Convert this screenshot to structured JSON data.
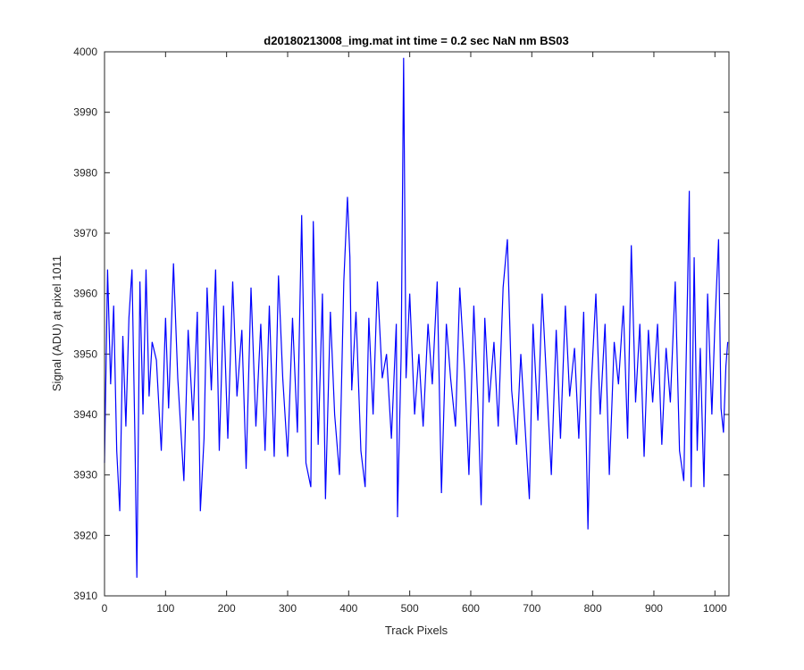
{
  "chart_data": {
    "type": "line",
    "title": "d20180213008_img.mat int time = 0.2 sec  NaN nm BS03",
    "xlabel": "Track Pixels",
    "ylabel": "Signal (ADU) at pixel 1011",
    "xlim": [
      0,
      1023
    ],
    "ylim": [
      3910,
      4000
    ],
    "xticks": [
      0,
      100,
      200,
      300,
      400,
      500,
      600,
      700,
      800,
      900,
      1000
    ],
    "yticks": [
      3910,
      3920,
      3930,
      3940,
      3950,
      3960,
      3970,
      3980,
      3990,
      4000
    ],
    "grid": false,
    "legend": "none",
    "color": "#0000ff",
    "series": [
      {
        "points": [
          [
            0,
            3932
          ],
          [
            5,
            3964
          ],
          [
            10,
            3945
          ],
          [
            15,
            3958
          ],
          [
            20,
            3934
          ],
          [
            25,
            3924
          ],
          [
            30,
            3953
          ],
          [
            35,
            3938
          ],
          [
            40,
            3956
          ],
          [
            45,
            3964
          ],
          [
            50,
            3935
          ],
          [
            53,
            3913
          ],
          [
            58,
            3962
          ],
          [
            63,
            3940
          ],
          [
            68,
            3964
          ],
          [
            73,
            3943
          ],
          [
            78,
            3952
          ],
          [
            85,
            3949
          ],
          [
            93,
            3934
          ],
          [
            100,
            3956
          ],
          [
            105,
            3941
          ],
          [
            113,
            3965
          ],
          [
            120,
            3946
          ],
          [
            130,
            3929
          ],
          [
            137,
            3954
          ],
          [
            145,
            3939
          ],
          [
            152,
            3957
          ],
          [
            157,
            3924
          ],
          [
            163,
            3936
          ],
          [
            168,
            3961
          ],
          [
            175,
            3944
          ],
          [
            182,
            3964
          ],
          [
            188,
            3934
          ],
          [
            195,
            3958
          ],
          [
            202,
            3936
          ],
          [
            210,
            3962
          ],
          [
            217,
            3943
          ],
          [
            225,
            3954
          ],
          [
            232,
            3931
          ],
          [
            240,
            3961
          ],
          [
            248,
            3938
          ],
          [
            256,
            3955
          ],
          [
            263,
            3934
          ],
          [
            270,
            3958
          ],
          [
            278,
            3933
          ],
          [
            285,
            3963
          ],
          [
            292,
            3946
          ],
          [
            300,
            3933
          ],
          [
            308,
            3956
          ],
          [
            316,
            3937
          ],
          [
            323,
            3973
          ],
          [
            330,
            3932
          ],
          [
            338,
            3928
          ],
          [
            342,
            3972
          ],
          [
            350,
            3935
          ],
          [
            357,
            3960
          ],
          [
            362,
            3926
          ],
          [
            370,
            3957
          ],
          [
            377,
            3940
          ],
          [
            385,
            3930
          ],
          [
            392,
            3962
          ],
          [
            398,
            3976
          ],
          [
            402,
            3966
          ],
          [
            405,
            3944
          ],
          [
            412,
            3957
          ],
          [
            420,
            3934
          ],
          [
            427,
            3928
          ],
          [
            433,
            3956
          ],
          [
            440,
            3940
          ],
          [
            447,
            3962
          ],
          [
            455,
            3946
          ],
          [
            462,
            3950
          ],
          [
            470,
            3936
          ],
          [
            478,
            3955
          ],
          [
            480,
            3923
          ],
          [
            486,
            3950
          ],
          [
            490,
            3999
          ],
          [
            494,
            3946
          ],
          [
            500,
            3960
          ],
          [
            508,
            3940
          ],
          [
            515,
            3950
          ],
          [
            522,
            3938
          ],
          [
            530,
            3955
          ],
          [
            537,
            3945
          ],
          [
            545,
            3962
          ],
          [
            552,
            3927
          ],
          [
            560,
            3955
          ],
          [
            567,
            3946
          ],
          [
            575,
            3938
          ],
          [
            582,
            3961
          ],
          [
            590,
            3947
          ],
          [
            597,
            3930
          ],
          [
            605,
            3958
          ],
          [
            612,
            3941
          ],
          [
            617,
            3925
          ],
          [
            623,
            3956
          ],
          [
            630,
            3942
          ],
          [
            638,
            3952
          ],
          [
            645,
            3938
          ],
          [
            653,
            3961
          ],
          [
            660,
            3969
          ],
          [
            667,
            3944
          ],
          [
            675,
            3935
          ],
          [
            682,
            3950
          ],
          [
            689,
            3938
          ],
          [
            696,
            3926
          ],
          [
            702,
            3955
          ],
          [
            710,
            3939
          ],
          [
            717,
            3960
          ],
          [
            725,
            3944
          ],
          [
            732,
            3930
          ],
          [
            740,
            3954
          ],
          [
            747,
            3936
          ],
          [
            755,
            3958
          ],
          [
            762,
            3943
          ],
          [
            770,
            3951
          ],
          [
            777,
            3936
          ],
          [
            785,
            3957
          ],
          [
            792,
            3921
          ],
          [
            797,
            3944
          ],
          [
            805,
            3960
          ],
          [
            812,
            3940
          ],
          [
            820,
            3955
          ],
          [
            827,
            3930
          ],
          [
            835,
            3952
          ],
          [
            842,
            3945
          ],
          [
            850,
            3958
          ],
          [
            857,
            3936
          ],
          [
            863,
            3968
          ],
          [
            870,
            3942
          ],
          [
            877,
            3955
          ],
          [
            884,
            3933
          ],
          [
            891,
            3954
          ],
          [
            898,
            3942
          ],
          [
            906,
            3955
          ],
          [
            913,
            3935
          ],
          [
            920,
            3951
          ],
          [
            927,
            3942
          ],
          [
            935,
            3962
          ],
          [
            942,
            3934
          ],
          [
            949,
            3929
          ],
          [
            955,
            3960
          ],
          [
            958,
            3977
          ],
          [
            961,
            3928
          ],
          [
            966,
            3966
          ],
          [
            971,
            3934
          ],
          [
            976,
            3951
          ],
          [
            982,
            3928
          ],
          [
            988,
            3960
          ],
          [
            995,
            3940
          ],
          [
            1000,
            3955
          ],
          [
            1006,
            3969
          ],
          [
            1010,
            3941
          ],
          [
            1014,
            3937
          ],
          [
            1018,
            3948
          ],
          [
            1021,
            3952
          ]
        ]
      }
    ]
  }
}
